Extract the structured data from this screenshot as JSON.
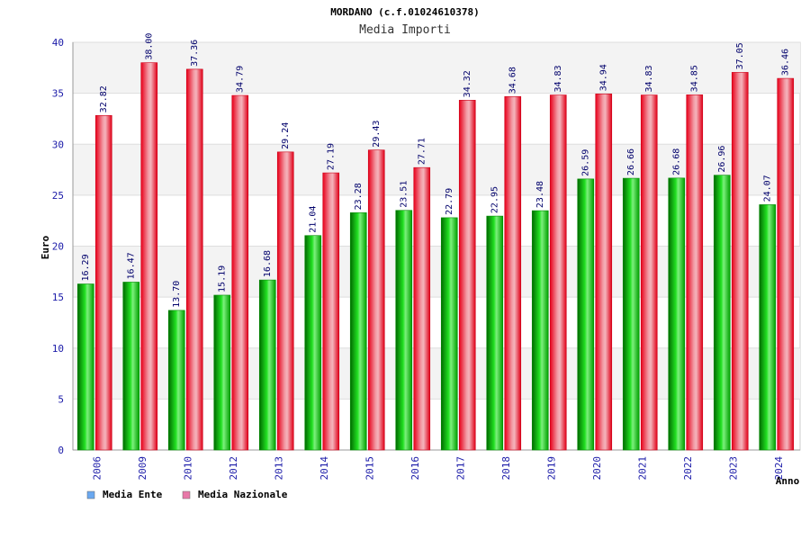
{
  "chart_data": {
    "type": "bar",
    "title": "MORDANO (c.f.01024610378)",
    "subtitle": "Media Importi",
    "xlabel": "Anno",
    "ylabel": "Euro",
    "ylim": [
      0,
      40
    ],
    "yticks": [
      "0",
      "5",
      "10",
      "15",
      "20",
      "25",
      "30",
      "35",
      "40"
    ],
    "categories": [
      "2006",
      "2009",
      "2010",
      "2012",
      "2013",
      "2014",
      "2015",
      "2016",
      "2017",
      "2018",
      "2019",
      "2020",
      "2021",
      "2022",
      "2023",
      "2024"
    ],
    "series": [
      {
        "name": "Media Ente",
        "color": "#00c000",
        "legend_color": "#6aa8f0",
        "values": [
          16.29,
          16.47,
          13.7,
          15.19,
          16.68,
          21.04,
          23.28,
          23.51,
          22.79,
          22.95,
          23.48,
          26.59,
          26.66,
          26.68,
          26.96,
          24.07
        ],
        "labels": [
          "16.29",
          "16.47",
          "13.70",
          "15.19",
          "16.68",
          "21.04",
          "23.28",
          "23.51",
          "22.79",
          "22.95",
          "23.48",
          "26.59",
          "26.66",
          "26.68",
          "26.96",
          "24.07"
        ]
      },
      {
        "name": "Media Nazionale",
        "color": "#e8182a",
        "legend_color": "#e878a8",
        "values": [
          32.82,
          38.0,
          37.36,
          34.79,
          29.24,
          27.19,
          29.43,
          27.71,
          34.32,
          34.68,
          34.83,
          34.94,
          34.83,
          34.85,
          37.05,
          36.46
        ],
        "labels": [
          "32.82",
          "38.00",
          "37.36",
          "34.79",
          "29.24",
          "27.19",
          "29.43",
          "27.71",
          "34.32",
          "34.68",
          "34.83",
          "34.94",
          "34.83",
          "34.85",
          "37.05",
          "36.46"
        ]
      }
    ],
    "grid": true,
    "legend": "bottom-left"
  }
}
